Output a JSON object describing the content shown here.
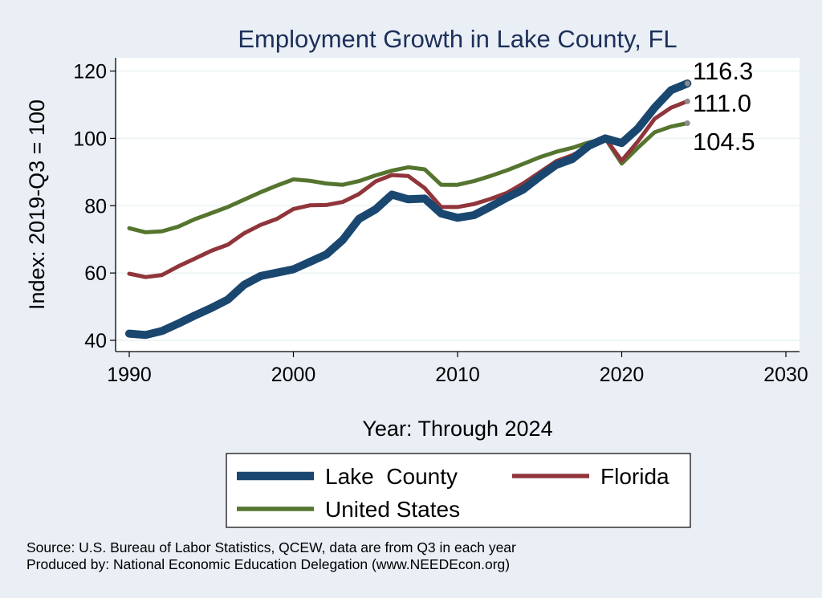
{
  "chart_data": {
    "type": "line",
    "title": "Employment Growth in Lake County, FL",
    "xlabel": "Year: Through 2024",
    "ylabel": "Index: 2019-Q3 = 100",
    "xlim": [
      1990,
      2030
    ],
    "ylim": [
      38,
      124
    ],
    "x_ticks": [
      1990,
      2000,
      2010,
      2020,
      2030
    ],
    "y_ticks": [
      40,
      60,
      80,
      100,
      120
    ],
    "grid": true,
    "legend_position": "bottom",
    "x": [
      1990,
      1991,
      1992,
      1993,
      1994,
      1995,
      1996,
      1997,
      1998,
      1999,
      2000,
      2001,
      2002,
      2003,
      2004,
      2005,
      2006,
      2007,
      2008,
      2009,
      2010,
      2011,
      2012,
      2013,
      2014,
      2015,
      2016,
      2017,
      2018,
      2019,
      2020,
      2021,
      2022,
      2023,
      2024
    ],
    "series": [
      {
        "name": "Lake  County",
        "color": "#1a476f",
        "end_label": "116.3",
        "values": [
          42.0,
          41.6,
          42.8,
          45.0,
          47.4,
          49.6,
          52.1,
          56.5,
          59.1,
          60.1,
          61.1,
          63.3,
          65.5,
          69.8,
          76.1,
          78.9,
          83.3,
          81.9,
          82.1,
          77.7,
          76.4,
          77.2,
          79.7,
          82.4,
          84.8,
          88.6,
          92.1,
          93.9,
          97.8,
          100.0,
          98.6,
          103.0,
          109.1,
          114.3,
          116.3
        ]
      },
      {
        "name": "Florida",
        "color": "#90353b",
        "end_label": "111.0",
        "values": [
          59.8,
          58.8,
          59.4,
          62.0,
          64.3,
          66.6,
          68.4,
          71.8,
          74.3,
          76.1,
          79.0,
          80.1,
          80.2,
          81.1,
          83.5,
          87.2,
          89.1,
          88.8,
          85.2,
          79.6,
          79.6,
          80.5,
          82.0,
          83.8,
          86.6,
          89.9,
          93.2,
          95.0,
          97.6,
          100.0,
          93.4,
          99.2,
          105.8,
          109.1,
          111.0
        ]
      },
      {
        "name": "United States",
        "color": "#55752f",
        "end_label": "104.5",
        "values": [
          73.3,
          72.1,
          72.4,
          73.8,
          76.0,
          77.8,
          79.6,
          81.8,
          84.0,
          86.0,
          87.8,
          87.4,
          86.6,
          86.2,
          87.3,
          89.0,
          90.4,
          91.4,
          90.8,
          86.2,
          86.2,
          87.3,
          88.8,
          90.5,
          92.4,
          94.4,
          96.0,
          97.2,
          98.8,
          100.0,
          92.5,
          97.3,
          101.8,
          103.5,
          104.5
        ]
      }
    ]
  },
  "source_note": "Source: U.S. Bureau of Labor Statistics, QCEW, data are from Q3 in each year",
  "producer_note": "Produced by: National Economic Education Delegation (www.NEEDEcon.org)"
}
